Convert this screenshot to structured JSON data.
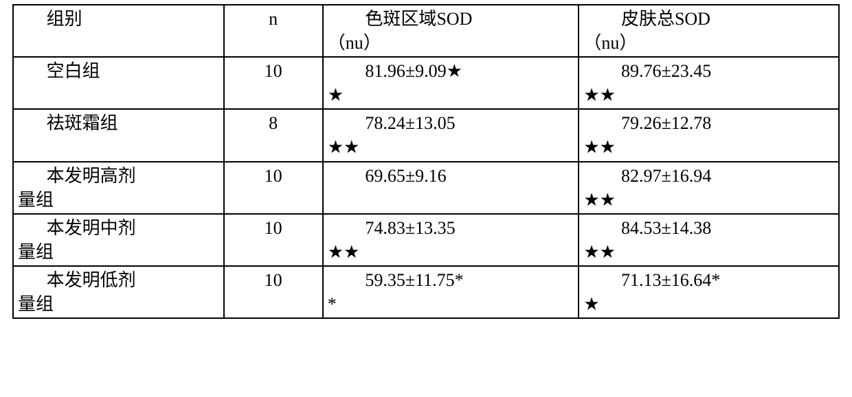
{
  "table": {
    "background_color": "#ffffff",
    "border_color": "#000000",
    "text_color": "#000000",
    "font_size_pt": 20,
    "font_family": "SimSun",
    "columns": [
      "组别",
      "n",
      "色斑区域SOD（nu）",
      "皮肤总SOD（nu）"
    ],
    "header": {
      "group": "组别",
      "n": "n",
      "col3_line1": "色斑区域SOD",
      "col3_line2": "（nu）",
      "col4_line1": "皮肤总SOD",
      "col4_line2": "（nu）"
    },
    "rows": [
      {
        "group_line1": "空白组",
        "group_line2": "",
        "n": "10",
        "c3_line1": "81.96±9.09★",
        "c3_line2": "★",
        "c4_line1": "89.76±23.45",
        "c4_line2": "★★"
      },
      {
        "group_line1": "祛斑霜组",
        "group_line2": "",
        "n": "8",
        "c3_line1": "78.24±13.05",
        "c3_line2": "★★",
        "c4_line1": "79.26±12.78",
        "c4_line2": "★★"
      },
      {
        "group_line1": "本发明高剂",
        "group_line2": "量组",
        "n": "10",
        "c3_line1": "69.65±9.16",
        "c3_line2": "",
        "c4_line1": "82.97±16.94",
        "c4_line2": "★★"
      },
      {
        "group_line1": "本发明中剂",
        "group_line2": "量组",
        "n": "10",
        "c3_line1": "74.83±13.35",
        "c3_line2": "★★",
        "c4_line1": "84.53±14.38",
        "c4_line2": "★★"
      },
      {
        "group_line1": "本发明低剂",
        "group_line2": "量组",
        "n": "10",
        "c3_line1": "59.35±11.75*",
        "c3_line2": "*",
        "c4_line1": "71.13±16.64*",
        "c4_line2": "★"
      }
    ]
  }
}
